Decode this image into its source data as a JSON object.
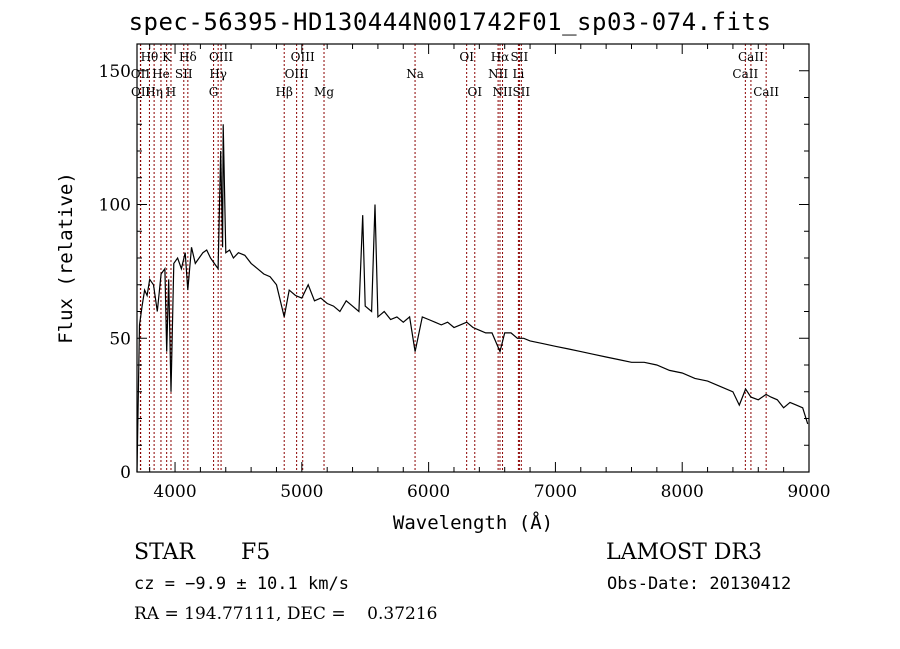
{
  "title": "spec-56395-HD130444N001742F01_sp03-074.fits",
  "info": {
    "object_class": "STAR",
    "subclass": "F5",
    "survey": "LAMOST DR3",
    "cz": "cz = −9.9 ± 10.1 km/s",
    "obs_date": "Obs-Date: 20130412",
    "coords": "RA = 194.77111, DEC =    0.37216"
  },
  "chart_data": {
    "type": "line",
    "title": "spec-56395-HD130444N001742F01_sp03-074.fits",
    "xlabel": "Wavelength (Å)",
    "ylabel": "Flux (relative)",
    "xlim": [
      3700,
      9000
    ],
    "ylim": [
      0,
      160
    ],
    "x_ticks": [
      4000,
      5000,
      6000,
      7000,
      8000,
      9000
    ],
    "y_ticks": [
      0,
      50,
      100,
      150
    ],
    "line_color": "#000000",
    "marker_color": "#8b0000",
    "series": [
      {
        "x": [
          3700,
          3720,
          3740,
          3760,
          3780,
          3800,
          3830,
          3860,
          3890,
          3920,
          3934,
          3950,
          3968,
          3990,
          4020,
          4050,
          4080,
          4101,
          4130,
          4160,
          4190,
          4220,
          4250,
          4280,
          4310,
          4340,
          4360,
          4375,
          4380,
          4400,
          4430,
          4460,
          4500,
          4550,
          4600,
          4650,
          4700,
          4750,
          4800,
          4861,
          4900,
          4950,
          5000,
          5050,
          5100,
          5150,
          5200,
          5250,
          5300,
          5350,
          5400,
          5450,
          5480,
          5500,
          5550,
          5577,
          5600,
          5650,
          5700,
          5750,
          5800,
          5850,
          5893,
          5950,
          6000,
          6050,
          6100,
          6150,
          6200,
          6250,
          6300,
          6350,
          6400,
          6450,
          6500,
          6563,
          6600,
          6650,
          6700,
          6750,
          6800,
          6900,
          7000,
          7100,
          7200,
          7300,
          7400,
          7500,
          7600,
          7700,
          7800,
          7900,
          8000,
          8100,
          8200,
          8300,
          8400,
          8450,
          8500,
          8542,
          8600,
          8662,
          8700,
          8750,
          8800,
          8850,
          8900,
          8950,
          8990
        ],
        "y": [
          0,
          55,
          62,
          68,
          66,
          72,
          70,
          60,
          74,
          76,
          45,
          72,
          30,
          78,
          80,
          76,
          82,
          68,
          84,
          78,
          80,
          82,
          83,
          80,
          78,
          76,
          120,
          84,
          130,
          82,
          83,
          80,
          82,
          81,
          78,
          76,
          74,
          73,
          70,
          58,
          68,
          66,
          65,
          70,
          64,
          65,
          63,
          62,
          60,
          64,
          62,
          60,
          96,
          62,
          60,
          100,
          58,
          60,
          57,
          58,
          56,
          58,
          45,
          58,
          57,
          56,
          55,
          56,
          54,
          55,
          56,
          54,
          53,
          52,
          52,
          45,
          52,
          52,
          50,
          50,
          49,
          48,
          47,
          46,
          45,
          44,
          43,
          42,
          41,
          41,
          40,
          38,
          37,
          35,
          34,
          32,
          30,
          25,
          31,
          28,
          27,
          29,
          28,
          27,
          24,
          26,
          25,
          24,
          18
        ]
      }
    ],
    "line_markers": [
      {
        "label": "Hθ",
        "x": 3798,
        "row": 1
      },
      {
        "label": "OII",
        "x": 3727,
        "row": 2
      },
      {
        "label": "OII",
        "x": 3729,
        "row": 3
      },
      {
        "label": "K",
        "x": 3934,
        "row": 1
      },
      {
        "label": "He",
        "x": 3889,
        "row": 2
      },
      {
        "label": "Hη",
        "x": 3835,
        "row": 3
      },
      {
        "label": "Hδ",
        "x": 4101,
        "row": 1
      },
      {
        "label": "SII",
        "x": 4069,
        "row": 2
      },
      {
        "label": "H",
        "x": 3968,
        "row": 3
      },
      {
        "label": "OIII",
        "x": 4363,
        "row": 1
      },
      {
        "label": "Hγ",
        "x": 4340,
        "row": 2
      },
      {
        "label": "G",
        "x": 4304,
        "row": 3
      },
      {
        "label": "OIII",
        "x": 5007,
        "row": 1
      },
      {
        "label": "OIII",
        "x": 4959,
        "row": 2
      },
      {
        "label": "Hβ",
        "x": 4861,
        "row": 3
      },
      {
        "label": "Mg",
        "x": 5175,
        "row": 3
      },
      {
        "label": "Na",
        "x": 5893,
        "row": 2
      },
      {
        "label": "OI",
        "x": 6300,
        "row": 1
      },
      {
        "label": "OI",
        "x": 6364,
        "row": 3
      },
      {
        "label": "Hα",
        "x": 6563,
        "row": 1
      },
      {
        "label": "SII",
        "x": 6716,
        "row": 1
      },
      {
        "label": "NII",
        "x": 6548,
        "row": 2
      },
      {
        "label": "Li",
        "x": 6708,
        "row": 2
      },
      {
        "label": "NII",
        "x": 6583,
        "row": 3
      },
      {
        "label": "SII",
        "x": 6731,
        "row": 3
      },
      {
        "label": "CaII",
        "x": 8542,
        "row": 1
      },
      {
        "label": "CaII",
        "x": 8498,
        "row": 2
      },
      {
        "label": "CaII",
        "x": 8662,
        "row": 3
      }
    ]
  }
}
